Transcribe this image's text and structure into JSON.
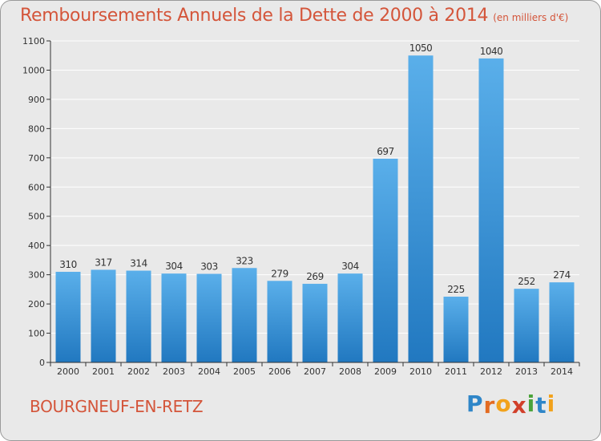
{
  "header": {
    "title": "Remboursements Annuels de la Dette de 2000 à 2014",
    "subtitle": "(en milliers d'€)"
  },
  "footer": {
    "commune": "BOURGNEUF-EN-RETZ",
    "logo_text": "Proxiti",
    "logo_letters": [
      {
        "ch": "P",
        "color": "#2f86c8"
      },
      {
        "ch": "r",
        "color": "#e36b21"
      },
      {
        "ch": "o",
        "color": "#f2a21b"
      },
      {
        "ch": "x",
        "color": "#d13f2a"
      },
      {
        "ch": "i",
        "color": "#4aa33a"
      },
      {
        "ch": "t",
        "color": "#2f86c8"
      },
      {
        "ch": "i",
        "color": "#f2a21b"
      }
    ]
  },
  "colors": {
    "bar_light": "#5aafea",
    "bar_dark": "#2178c0",
    "grid": "#ffffff",
    "axis": "#333333",
    "title": "#d4553a"
  },
  "chart_data": {
    "type": "bar",
    "title": "Remboursements Annuels de la Dette de 2000 à 2014",
    "subtitle": "(en milliers d'€)",
    "xlabel": "",
    "ylabel": "",
    "categories": [
      "2000",
      "2001",
      "2002",
      "2003",
      "2004",
      "2005",
      "2006",
      "2007",
      "2008",
      "2009",
      "2010",
      "2011",
      "2012",
      "2013",
      "2014"
    ],
    "values": [
      310,
      317,
      314,
      304,
      303,
      323,
      279,
      269,
      304,
      697,
      1050,
      225,
      1040,
      252,
      274
    ],
    "ylim": [
      0,
      1100
    ],
    "yticks": [
      0,
      100,
      200,
      300,
      400,
      500,
      600,
      700,
      800,
      900,
      1000,
      1100
    ],
    "grid": true,
    "legend": "none"
  }
}
